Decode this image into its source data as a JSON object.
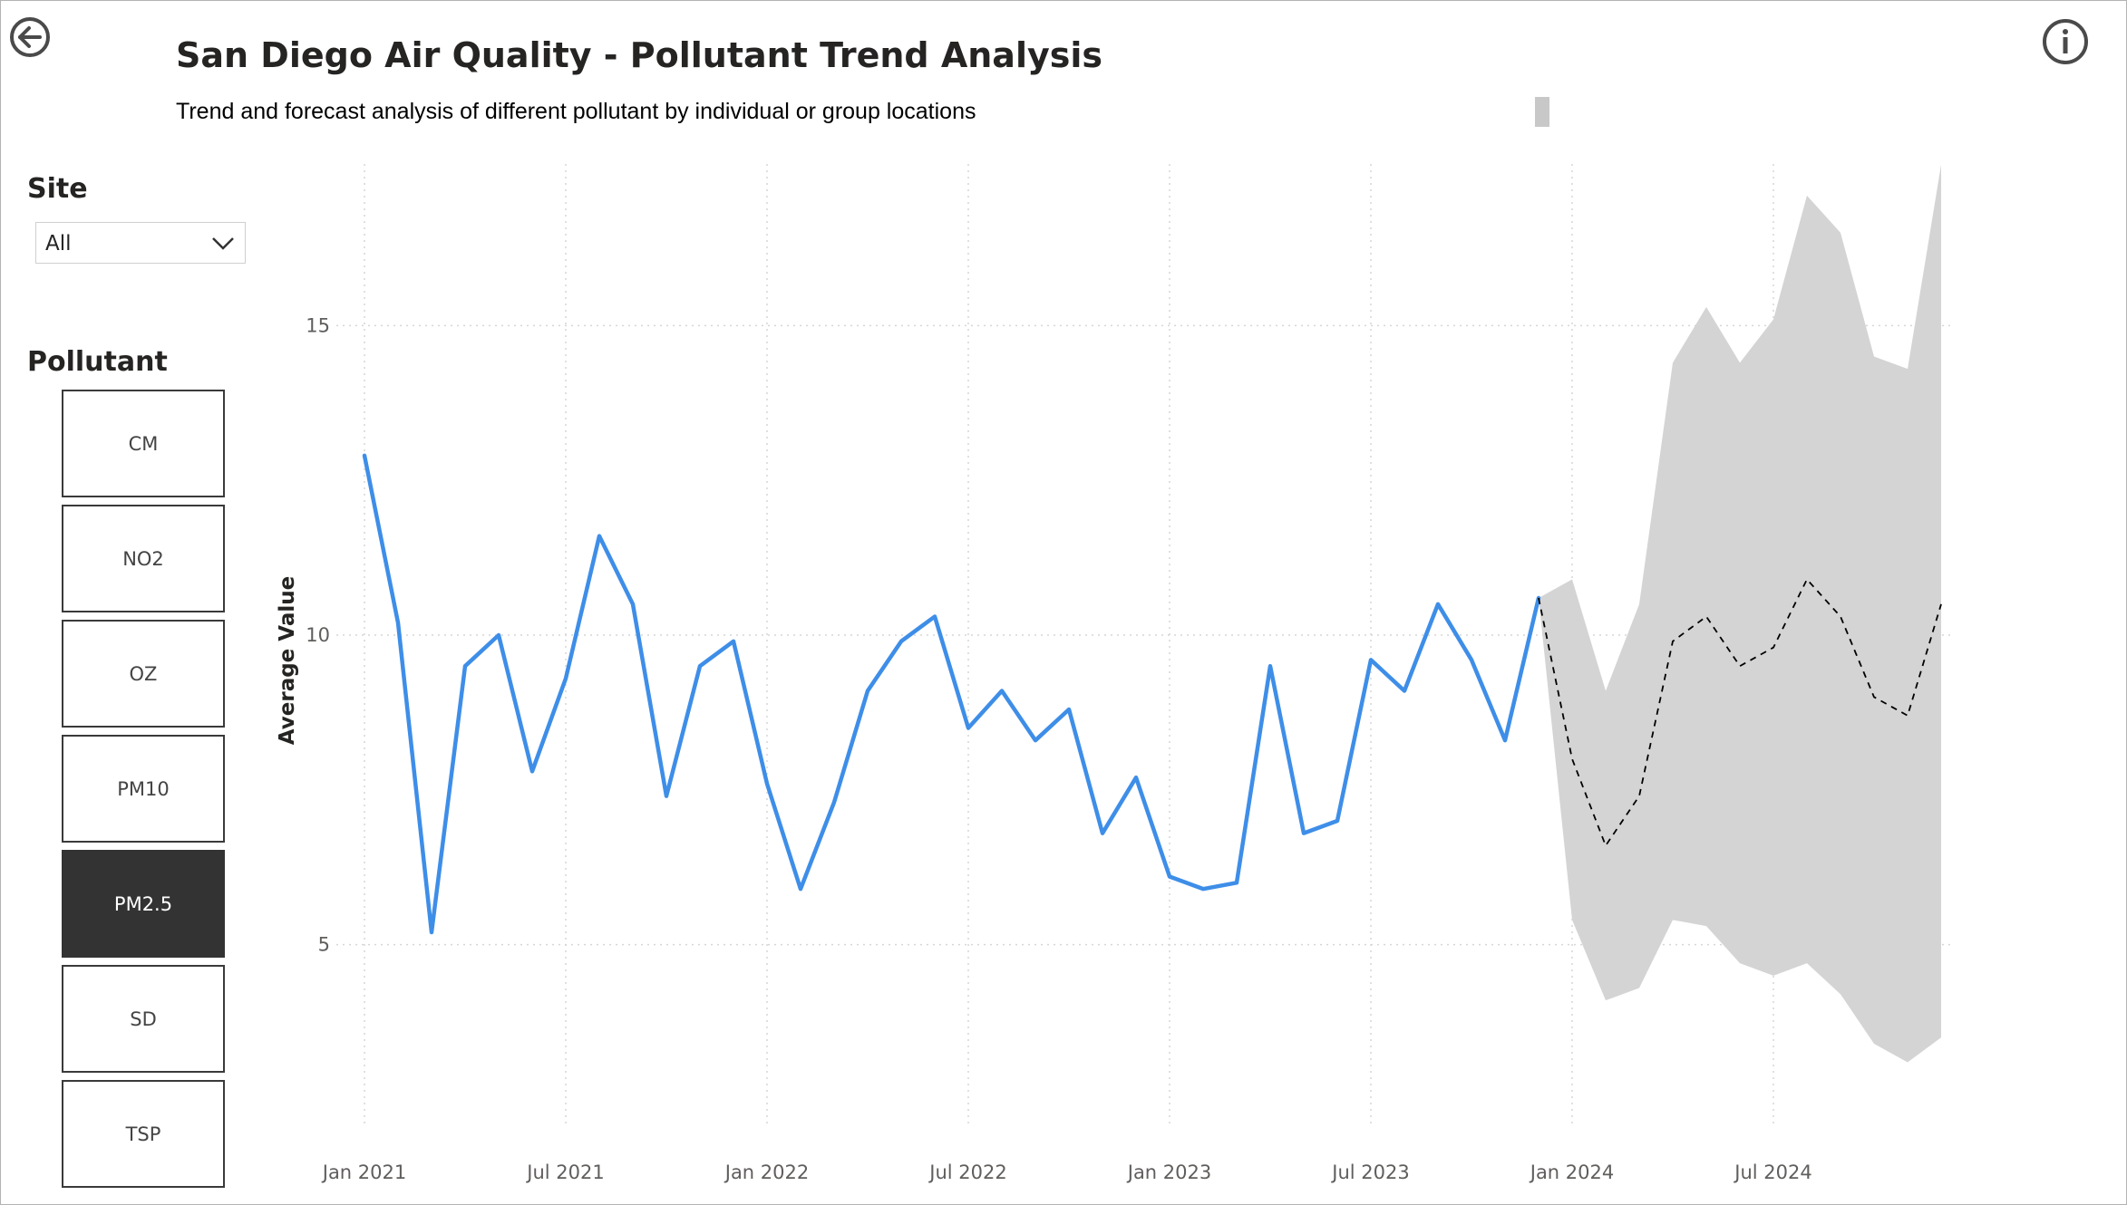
{
  "header": {
    "title": "San Diego Air Quality - Pollutant Trend Analysis",
    "subtitle": "Trend and forecast analysis of different pollutant by individual or group locations"
  },
  "icons": {
    "back": "back-arrow-circle-icon",
    "info": "info-circle-icon"
  },
  "filters": {
    "site_label": "Site",
    "site_value": "All",
    "pollutant_label": "Pollutant",
    "pollutants": [
      "CM",
      "NO2",
      "OZ",
      "PM10",
      "PM2.5",
      "SD",
      "TSP"
    ],
    "selected_pollutant": "PM2.5"
  },
  "colors": {
    "actual_line": "#3e8ee8",
    "forecast_line": "#000000",
    "forecast_band": "#d4d4d4",
    "selected_button": "#333333"
  },
  "chart_data": {
    "type": "line",
    "title": "",
    "xlabel": "",
    "ylabel": "Average Value",
    "ylim": [
      2.5,
      17.5
    ],
    "yticks": [
      5,
      10,
      15
    ],
    "xtick_labels": [
      "Jan 2021",
      "Jul 2021",
      "Jan 2022",
      "Jul 2022",
      "Jan 2023",
      "Jul 2023",
      "Jan 2024",
      "Jul 2024"
    ],
    "xtick_dates": [
      "2021-01",
      "2021-07",
      "2022-01",
      "2022-07",
      "2023-01",
      "2023-07",
      "2024-01",
      "2024-07"
    ],
    "grid": true,
    "series": [
      {
        "x": [
          "2021-01",
          "2021-02",
          "2021-03",
          "2021-04",
          "2021-05",
          "2021-06",
          "2021-07",
          "2021-08",
          "2021-09",
          "2021-10",
          "2021-11",
          "2021-12",
          "2022-01",
          "2022-02",
          "2022-03",
          "2022-04",
          "2022-05",
          "2022-06",
          "2022-07",
          "2022-08",
          "2022-09",
          "2022-10",
          "2022-11",
          "2022-12",
          "2023-01",
          "2023-02",
          "2023-03",
          "2023-04",
          "2023-05",
          "2023-06",
          "2023-07",
          "2023-08",
          "2023-09",
          "2023-10",
          "2023-11",
          "2023-12"
        ],
        "values": [
          12.9,
          10.2,
          5.2,
          9.5,
          10.0,
          7.8,
          9.3,
          11.6,
          10.5,
          7.4,
          9.5,
          9.9,
          7.6,
          5.9,
          7.3,
          9.1,
          9.9,
          10.3,
          8.5,
          9.1,
          8.3,
          8.8,
          6.8,
          7.7,
          6.1,
          5.9,
          6.0,
          9.5,
          6.8,
          7.0,
          9.6,
          9.1,
          10.5,
          9.6,
          8.3,
          10.6
        ]
      },
      {
        "style": "dashed",
        "x": [
          "2023-12",
          "2024-01",
          "2024-02",
          "2024-03",
          "2024-04",
          "2024-05",
          "2024-06",
          "2024-07",
          "2024-08",
          "2024-09",
          "2024-10",
          "2024-11",
          "2024-12"
        ],
        "values": [
          10.6,
          8.0,
          6.6,
          7.4,
          9.9,
          10.3,
          9.5,
          9.8,
          10.9,
          10.3,
          9.0,
          8.7,
          10.5
        ],
        "upper": [
          10.6,
          10.9,
          9.1,
          10.5,
          14.4,
          15.3,
          14.4,
          15.1,
          17.1,
          16.5,
          14.5,
          14.3,
          17.6
        ],
        "lower": [
          10.6,
          5.4,
          4.1,
          4.3,
          5.4,
          5.3,
          4.7,
          4.5,
          4.7,
          4.2,
          3.4,
          3.1,
          3.5
        ]
      }
    ]
  }
}
